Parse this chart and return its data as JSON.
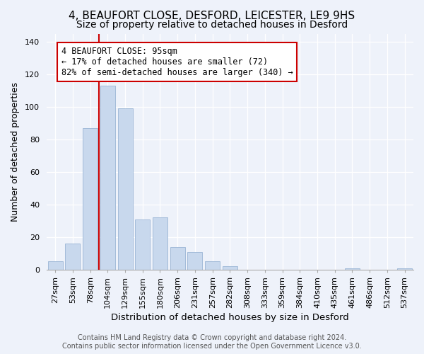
{
  "title": "4, BEAUFORT CLOSE, DESFORD, LEICESTER, LE9 9HS",
  "subtitle": "Size of property relative to detached houses in Desford",
  "xlabel": "Distribution of detached houses by size in Desford",
  "ylabel": "Number of detached properties",
  "bar_labels": [
    "27sqm",
    "53sqm",
    "78sqm",
    "104sqm",
    "129sqm",
    "155sqm",
    "180sqm",
    "206sqm",
    "231sqm",
    "257sqm",
    "282sqm",
    "308sqm",
    "333sqm",
    "359sqm",
    "384sqm",
    "410sqm",
    "435sqm",
    "461sqm",
    "486sqm",
    "512sqm",
    "537sqm"
  ],
  "bar_values": [
    5,
    16,
    87,
    113,
    99,
    31,
    32,
    14,
    11,
    5,
    2,
    0,
    0,
    0,
    0,
    0,
    0,
    1,
    0,
    0,
    1
  ],
  "bar_color": "#c8d8ed",
  "bar_edge_color": "#9ab5d4",
  "vline_color": "#cc0000",
  "annotation_text": "4 BEAUFORT CLOSE: 95sqm\n← 17% of detached houses are smaller (72)\n82% of semi-detached houses are larger (340) →",
  "annotation_box_color": "white",
  "annotation_box_edge_color": "#cc0000",
  "ylim": [
    0,
    145
  ],
  "yticks": [
    0,
    20,
    40,
    60,
    80,
    100,
    120,
    140
  ],
  "footer_line1": "Contains HM Land Registry data © Crown copyright and database right 2024.",
  "footer_line2": "Contains public sector information licensed under the Open Government Licence v3.0.",
  "title_fontsize": 11,
  "subtitle_fontsize": 10,
  "xlabel_fontsize": 9.5,
  "ylabel_fontsize": 9,
  "tick_fontsize": 8,
  "annotation_fontsize": 8.5,
  "footer_fontsize": 7,
  "background_color": "#eef2fa",
  "grid_color": "#ffffff",
  "spine_color": "#aaaaaa"
}
